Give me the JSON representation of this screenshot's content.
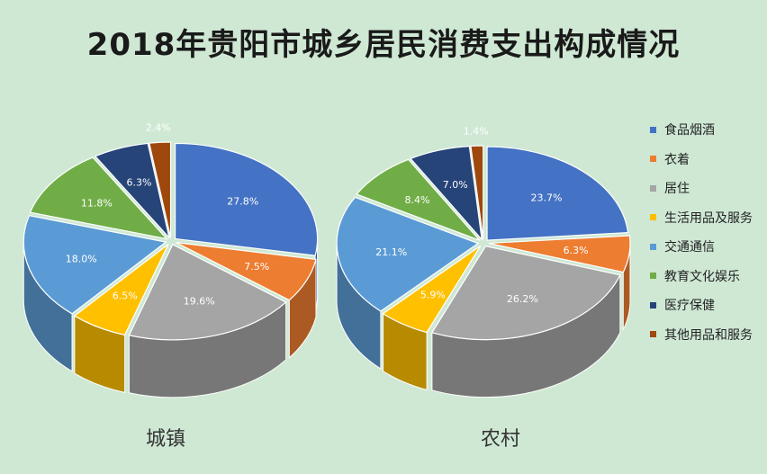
{
  "chart_data": {
    "type": "pie",
    "title": "2018年贵阳市城乡居民消费支出构成情况",
    "categories": [
      "食品烟酒",
      "衣着",
      "居住",
      "生活用品及服务",
      "交通通信",
      "教育文化娱乐",
      "医疗保健",
      "其他用品和服务"
    ],
    "colors": [
      "#4472c4",
      "#ed7d31",
      "#a5a5a5",
      "#ffc000",
      "#5b9bd5",
      "#70ad47",
      "#264478",
      "#9e480e"
    ],
    "series": [
      {
        "name": "城镇",
        "values": [
          27.8,
          7.5,
          19.6,
          6.5,
          18.0,
          11.8,
          6.3,
          2.4
        ],
        "labels": [
          "27.8%",
          "7.5%",
          "19.6%",
          "6.5%",
          "18.0%",
          "11.8%",
          "6.3%",
          "2.4%"
        ]
      },
      {
        "name": "农村",
        "values": [
          23.7,
          6.3,
          26.2,
          5.9,
          21.1,
          8.4,
          7.0,
          1.4
        ],
        "labels": [
          "23.7%",
          "6.3%",
          "26.2%",
          "5.9%",
          "21.1%",
          "8.4%",
          "7.0%",
          "1.4%"
        ]
      }
    ],
    "legend_position": "right"
  }
}
